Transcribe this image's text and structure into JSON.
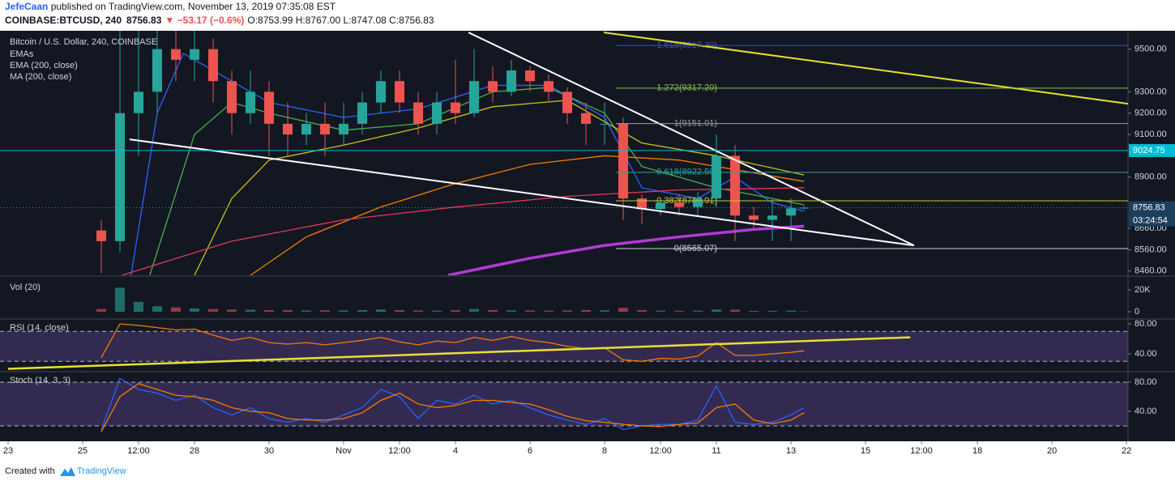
{
  "header": {
    "author": "JefeCaan",
    "published": " published on TradingView.com, November 13, 2019 07:35:08 EST",
    "symbol": "COINBASE:BTCUSD, 240",
    "last": "8756.83",
    "change": "▼ −53.17 (−0.6%)",
    "ohlc": "O:8753.99 H:8767.00 L:8747.08 C:8756.83"
  },
  "footer": {
    "text": "Created with",
    "brand": "TradingView"
  },
  "chart_data": [
    {
      "type": "candlestick",
      "title": "Bitcoin / U.S. Dollar, 240, COINBASE",
      "group_label": "EMAs",
      "up_color": "#26a69a",
      "down_color": "#ef5350",
      "x": [
        2.5,
        3,
        3.5,
        4,
        4.5,
        5,
        5.5,
        6,
        6.5,
        7,
        7.5,
        8,
        8.5,
        9,
        9.5,
        10,
        10.5,
        11,
        11.5,
        12,
        12.5,
        13,
        13.5,
        14,
        14.5,
        15,
        15.5,
        16,
        16.5,
        17,
        17.5,
        18,
        18.5,
        19,
        19.5,
        20,
        20.5,
        21,
        21.35
      ],
      "open": [
        8650,
        8600,
        9200,
        9300,
        9500,
        9450,
        9500,
        9350,
        9200,
        9300,
        9150,
        9100,
        9150,
        9100,
        9150,
        9250,
        9350,
        9250,
        9150,
        9250,
        9200,
        9350,
        9300,
        9400,
        9350,
        9300,
        9200,
        9150,
        9150,
        8800,
        8750,
        8780,
        8760,
        8800,
        9000,
        8720,
        8700,
        8720,
        8753.99
      ],
      "high": [
        8700,
        10000,
        9900,
        9700,
        9900,
        9700,
        9550,
        9400,
        9400,
        9350,
        9250,
        9200,
        9250,
        9250,
        9300,
        9400,
        9400,
        9300,
        9300,
        9450,
        9500,
        9420,
        9450,
        9420,
        9380,
        9320,
        9250,
        9250,
        9180,
        8820,
        8800,
        8820,
        8830,
        9100,
        9050,
        8760,
        8800,
        8800,
        8767
      ],
      "low": [
        8450,
        8550,
        9000,
        9200,
        9350,
        9350,
        9250,
        9100,
        9150,
        9000,
        9000,
        9050,
        9000,
        9050,
        9100,
        9200,
        9200,
        9100,
        9100,
        9150,
        9180,
        9250,
        9280,
        9300,
        9250,
        9150,
        9050,
        9050,
        8700,
        8680,
        8720,
        8720,
        8720,
        8760,
        8600,
        8660,
        8600,
        8600,
        8747.08
      ],
      "close": [
        8600,
        9200,
        9300,
        9500,
        9450,
        9500,
        9350,
        9200,
        9300,
        9150,
        9100,
        9150,
        9100,
        9150,
        9250,
        9350,
        9250,
        9150,
        9250,
        9200,
        9350,
        9300,
        9400,
        9350,
        9300,
        9200,
        9150,
        9150,
        8800,
        8750,
        8780,
        8760,
        8800,
        9000,
        8720,
        8700,
        8720,
        8753.99,
        8756.83
      ],
      "xlim": [
        -0.217,
        30.04
      ],
      "xticks": [
        {
          "value": 0,
          "label": "23"
        },
        {
          "value": 2,
          "label": "25"
        },
        {
          "value": 3.5,
          "label": "12:00"
        },
        {
          "value": 5,
          "label": "28"
        },
        {
          "value": 7,
          "label": "30"
        },
        {
          "value": 9,
          "label": "Nov"
        },
        {
          "value": 10.5,
          "label": "12:00"
        },
        {
          "value": 12,
          "label": "4"
        },
        {
          "value": 14,
          "label": "6"
        },
        {
          "value": 16,
          "label": "8"
        },
        {
          "value": 17.5,
          "label": "12:00"
        },
        {
          "value": 19,
          "label": "11"
        },
        {
          "value": 21,
          "label": "13"
        },
        {
          "value": 23,
          "label": "15"
        },
        {
          "value": 24.5,
          "label": "12:00"
        },
        {
          "value": 26,
          "label": "18"
        },
        {
          "value": 28,
          "label": "20"
        },
        {
          "value": 30,
          "label": "22"
        }
      ],
      "ylim": [
        8440,
        9586
      ],
      "yticks": [
        {
          "value": 8460,
          "label": "8460.00"
        },
        {
          "value": 8560,
          "label": "8560.00"
        },
        {
          "value": 8660,
          "label": "8660.00"
        },
        {
          "value": 8900,
          "label": "8900.00"
        },
        {
          "value": 9100,
          "label": "9100.00"
        },
        {
          "value": 9200,
          "label": "9200.00"
        },
        {
          "value": 9300,
          "label": "9300.00"
        },
        {
          "value": 9500,
          "label": "9500.00"
        }
      ],
      "overlays": [
        {
          "color": "#2962ff",
          "x": [
            3.3,
            4,
            4.7,
            5.5,
            7,
            9,
            11,
            13,
            14.5,
            16,
            17,
            18.5,
            19.5,
            20.5,
            21.35
          ],
          "values": [
            8440,
            9200,
            9480,
            9400,
            9250,
            9180,
            9220,
            9330,
            9330,
            9180,
            8850,
            8800,
            8900,
            8780,
            8740
          ]
        },
        {
          "color": "#4caf50",
          "x": [
            3.8,
            5,
            6,
            7,
            9,
            11,
            13,
            14.5,
            16,
            17,
            19,
            20.5,
            21.35
          ],
          "values": [
            8440,
            9100,
            9250,
            9200,
            9120,
            9150,
            9300,
            9320,
            9200,
            8950,
            8850,
            8800,
            8770
          ]
        },
        {
          "color": "#c9c21a",
          "x": [
            5,
            6,
            7,
            9,
            11,
            13,
            15,
            17,
            19,
            21.35
          ],
          "values": [
            8440,
            8800,
            8980,
            9050,
            9130,
            9230,
            9260,
            9060,
            9000,
            8910
          ]
        },
        {
          "color": "#f57c00",
          "x": [
            6.5,
            8,
            10,
            12,
            14,
            16,
            18,
            20,
            21.35
          ],
          "values": [
            8440,
            8620,
            8760,
            8870,
            8960,
            9000,
            8980,
            8920,
            8880
          ]
        },
        {
          "name": "EMA (200, close)",
          "color": "#e53957",
          "x": [
            3.05,
            6,
            9,
            12,
            15,
            18,
            21.35
          ],
          "values": [
            8440,
            8600,
            8700,
            8760,
            8810,
            8840,
            8850
          ]
        },
        {
          "name": "MA (200, close)",
          "color": "#b33ad6",
          "bold": true,
          "x": [
            11.8,
            14,
            16,
            18,
            20,
            21.35
          ],
          "values": [
            8440,
            8520,
            8580,
            8620,
            8655,
            8670
          ]
        }
      ],
      "trendlines": [
        {
          "color": "#ffffff",
          "x": [
            12.35,
            24.3
          ],
          "values": [
            9578,
            8580
          ]
        },
        {
          "color": "#ffffff",
          "x": [
            3.26,
            24.3
          ],
          "values": [
            9077,
            8580
          ]
        },
        {
          "color": "#e8e030",
          "x": [
            15.98,
            30.04
          ],
          "values": [
            9578,
            9244
          ]
        }
      ],
      "fib_levels": [
        {
          "value": 9517.3,
          "label": "1.618(9517.30)",
          "color": "#3f51b5"
        },
        {
          "value": 9317.2,
          "label": "1.272(9317.20)",
          "color": "#8bc34a"
        },
        {
          "value": 9151.01,
          "label": "1(9151.01)",
          "color": "#9e9e9e"
        },
        {
          "value": 8922.59,
          "label": "0.618(8922.59)",
          "color": "#26a69a"
        },
        {
          "value": 8788.91,
          "label": "0.382(8788.91)",
          "color": "#c0ca33"
        },
        {
          "value": 8565.07,
          "label": "0(8565.07)",
          "color": "#d1d4dc"
        }
      ],
      "price_labels": [
        {
          "value": 9024.75,
          "label": "9024.75",
          "color": "#00bcd4",
          "line": "solid"
        },
        {
          "value": 8756.83,
          "label": "8756.83",
          "color": "#1c3f5e",
          "line": "dotted"
        }
      ],
      "countdown": "03:24:54"
    },
    {
      "type": "bar",
      "title": "Vol (20)",
      "x": [
        2.5,
        3,
        3.5,
        4,
        4.5,
        5,
        5.5,
        6,
        6.5,
        7,
        7.5,
        8,
        8.5,
        9,
        9.5,
        10,
        10.5,
        11,
        11.5,
        12,
        12.5,
        13,
        13.5,
        14,
        14.5,
        15,
        15.5,
        16,
        16.5,
        17,
        17.5,
        18,
        18.5,
        19,
        19.5,
        20,
        20.5,
        21,
        21.35
      ],
      "values": [
        2500,
        22000,
        9000,
        5000,
        4000,
        3000,
        2500,
        2000,
        1800,
        1500,
        1500,
        1200,
        1300,
        1200,
        1500,
        2000,
        1500,
        1200,
        1000,
        1400,
        2500,
        1500,
        1300,
        1200,
        1000,
        1200,
        1500,
        1300,
        3500,
        1500,
        1000,
        800,
        900,
        2000,
        1800,
        800,
        900,
        1000,
        400
      ],
      "ylim": [
        -5926,
        31852
      ],
      "yticks": [
        0,
        {
          "value": 20000,
          "label": "20K"
        }
      ]
    },
    {
      "type": "line",
      "title": "RSI (14, close)",
      "band": [
        30,
        70
      ],
      "band_color": "#7e57c2",
      "x": [
        2.5,
        3,
        3.5,
        4,
        4.5,
        5,
        5.5,
        6,
        6.5,
        7,
        7.5,
        8,
        8.5,
        9,
        9.5,
        10,
        10.5,
        11,
        11.5,
        12,
        12.5,
        13,
        13.5,
        14,
        14.5,
        15,
        15.5,
        16,
        16.5,
        17,
        17.5,
        18,
        18.5,
        19,
        19.5,
        20,
        20.5,
        21,
        21.35
      ],
      "series": [
        {
          "color": "#f57c00",
          "values": [
            35,
            80,
            78,
            75,
            72,
            73,
            65,
            58,
            62,
            55,
            53,
            55,
            52,
            55,
            58,
            62,
            56,
            52,
            57,
            55,
            62,
            58,
            63,
            58,
            55,
            50,
            47,
            48,
            32,
            30,
            34,
            33,
            37,
            55,
            38,
            38,
            40,
            42,
            44
          ]
        }
      ],
      "trendlines": [
        {
          "color": "#e8e030",
          "x": [
            0,
            24.2
          ],
          "values": [
            20,
            62
          ]
        }
      ],
      "ylim": [
        17.3,
        85.4
      ],
      "yticks": [
        {
          "value": 40,
          "label": "40.00"
        },
        {
          "value": 80,
          "label": "80.00"
        }
      ]
    },
    {
      "type": "line",
      "title": "Stoch (14, 3, 3)",
      "band": [
        20,
        80
      ],
      "band_color": "#7e57c2",
      "x": [
        2.5,
        3,
        3.5,
        4,
        4.5,
        5,
        5.5,
        6,
        6.5,
        7,
        7.5,
        8,
        8.5,
        9,
        9.5,
        10,
        10.5,
        11,
        11.5,
        12,
        12.5,
        13,
        13.5,
        14,
        14.5,
        15,
        15.5,
        16,
        16.5,
        17,
        17.5,
        18,
        18.5,
        19,
        19.5,
        20,
        20.5,
        21,
        21.35
      ],
      "series": [
        {
          "color": "#2962ff",
          "values": [
            15,
            85,
            70,
            65,
            55,
            62,
            45,
            35,
            45,
            30,
            25,
            30,
            25,
            35,
            45,
            70,
            60,
            30,
            55,
            50,
            62,
            50,
            55,
            45,
            35,
            28,
            22,
            30,
            15,
            20,
            22,
            22,
            28,
            75,
            25,
            22,
            25,
            35,
            45
          ]
        },
        {
          "color": "#f57c00",
          "values": [
            12,
            60,
            78,
            70,
            62,
            60,
            55,
            45,
            40,
            38,
            30,
            28,
            28,
            30,
            38,
            55,
            65,
            50,
            45,
            48,
            55,
            55,
            52,
            50,
            42,
            33,
            27,
            25,
            22,
            20,
            19,
            22,
            24,
            45,
            50,
            28,
            23,
            28,
            38
          ]
        }
      ],
      "trendlines": [],
      "ylim": [
        4.4,
        93.3
      ],
      "yticks": [
        {
          "value": 40,
          "label": "40.00"
        },
        {
          "value": 80,
          "label": "80.00"
        }
      ]
    }
  ]
}
